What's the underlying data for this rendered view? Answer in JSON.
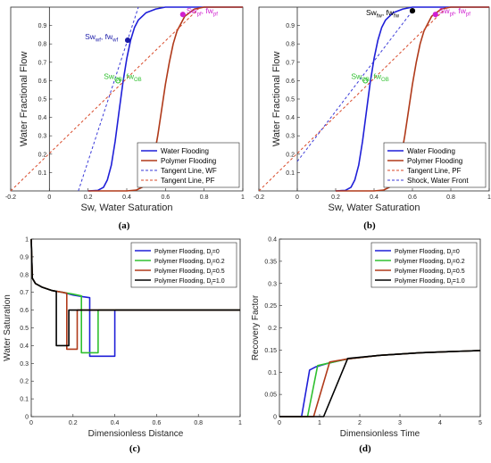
{
  "panels": [
    {
      "caption": "(a)",
      "legend": [
        "Water Flooding",
        "Polymer Flooding",
        "Tangent Line, WF",
        "Tangent Line, PF"
      ],
      "annotations": [
        {
          "text": "Sw",
          "sub": "wf",
          "sep": ", fw",
          "sub2": "wf"
        },
        {
          "text": "Sw",
          "sub": "pf",
          "sep": ", fw",
          "sub2": "pf"
        },
        {
          "text": "Sw",
          "sub": "OB",
          "sep": ", fw",
          "sub2": "OB"
        }
      ]
    },
    {
      "caption": "(b)",
      "legend": [
        "Water Flooding",
        "Polymer Flooding",
        "Tangent Line, PF",
        "Shock, Water Front"
      ],
      "annotations": [
        {
          "text": "Sw",
          "sub": "fw",
          "sep": ", fw",
          "sub2": "fw"
        },
        {
          "text": "Sw",
          "sub": "pf",
          "sep": ", fw",
          "sub2": "pf"
        },
        {
          "text": "Sw",
          "sub": "OB",
          "sep": ", fw",
          "sub2": "OB"
        }
      ]
    },
    {
      "caption": "(c)",
      "legend": [
        {
          "base": "Polymer Flooding, D",
          "sub": "i",
          "tail": "=0"
        },
        {
          "base": "Polymer Flooding, D",
          "sub": "i",
          "tail": "=0.2"
        },
        {
          "base": "Polymer Flooding, D",
          "sub": "i",
          "tail": "=0.5"
        },
        {
          "base": "Polymer Flooding, D",
          "sub": "i",
          "tail": "=1.0"
        }
      ]
    },
    {
      "caption": "(d)",
      "legend": [
        {
          "base": "Polymer Flooding, D",
          "sub": "i",
          "tail": "=0"
        },
        {
          "base": "Polymer Flooding, D",
          "sub": "i",
          "tail": "=0.2"
        },
        {
          "base": "Polymer Flooding, D",
          "sub": "i",
          "tail": "=0.5"
        },
        {
          "base": "Polymer Flooding, D",
          "sub": "i",
          "tail": "=1.0"
        }
      ]
    }
  ],
  "colors": {
    "water": "#1f1fd8",
    "polymer": "#b03a1a",
    "tangent_wf": "#3a3ad8",
    "tangent_pf": "#d84a2a",
    "annot_blue": "#1a1aa8",
    "annot_magenta": "#d020d0",
    "annot_green": "#30c030",
    "annot_black": "#000000",
    "d0": "#1f1fd8",
    "d02": "#30c030",
    "d05": "#b03a1a",
    "d10": "#000000"
  },
  "chart_data": [
    {
      "type": "line",
      "xlabel": "Sw, Water Saturation",
      "ylabel": "Water Fractional Flow",
      "xlim": [
        -0.2,
        1
      ],
      "ylim": [
        0,
        1
      ],
      "xticks": [
        "-0.2",
        "0",
        "0.2",
        "0.4",
        "0.6",
        "0.8",
        "1"
      ],
      "yticks": [
        "0.1",
        "0.2",
        "0.3",
        "0.4",
        "0.5",
        "0.6",
        "0.7",
        "0.8",
        "0.9"
      ],
      "legend_position": "bottom-right",
      "series": [
        {
          "name": "Water Flooding",
          "style": "solid",
          "x": [
            0.2,
            0.25,
            0.28,
            0.3,
            0.32,
            0.34,
            0.36,
            0.38,
            0.4,
            0.42,
            0.44,
            0.46,
            0.5,
            0.55,
            0.6,
            0.7,
            1.0
          ],
          "y": [
            0,
            0.003,
            0.02,
            0.06,
            0.14,
            0.27,
            0.43,
            0.59,
            0.72,
            0.82,
            0.89,
            0.93,
            0.97,
            0.99,
            1.0,
            1.0,
            1.0
          ]
        },
        {
          "name": "Polymer Flooding",
          "style": "solid",
          "x": [
            0.2,
            0.4,
            0.45,
            0.48,
            0.5,
            0.52,
            0.54,
            0.56,
            0.58,
            0.6,
            0.62,
            0.64,
            0.66,
            0.7,
            0.75,
            0.8,
            1.0
          ],
          "y": [
            0,
            0,
            0.005,
            0.02,
            0.05,
            0.1,
            0.18,
            0.3,
            0.44,
            0.58,
            0.7,
            0.8,
            0.87,
            0.95,
            0.99,
            1.0,
            1.0
          ]
        },
        {
          "name": "Tangent Line, WF",
          "style": "dashed",
          "x": [
            0.15,
            0.46
          ],
          "y": [
            0,
            1.0
          ]
        },
        {
          "name": "Tangent Line, PF",
          "style": "dashed",
          "x": [
            -0.2,
            0.78
          ],
          "y": [
            0,
            1.0
          ]
        }
      ],
      "points": [
        {
          "label": "wf",
          "x": 0.405,
          "y": 0.82
        },
        {
          "label": "pf",
          "x": 0.69,
          "y": 0.96
        },
        {
          "label": "OB",
          "x": 0.355,
          "y": 0.6
        }
      ]
    },
    {
      "type": "line",
      "xlabel": "Sw, Water Saturation",
      "ylabel": "Water Fractional Flow",
      "xlim": [
        -0.2,
        1
      ],
      "ylim": [
        0,
        1
      ],
      "xticks": [
        "-0.2",
        "0",
        "0.2",
        "0.4",
        "0.6",
        "0.8",
        "1"
      ],
      "yticks": [
        "0.1",
        "0.2",
        "0.3",
        "0.4",
        "0.5",
        "0.6",
        "0.7",
        "0.8",
        "0.9"
      ],
      "legend_position": "bottom-right",
      "series": [
        {
          "name": "Water Flooding",
          "style": "solid",
          "x": [
            0.2,
            0.25,
            0.28,
            0.3,
            0.32,
            0.34,
            0.36,
            0.38,
            0.4,
            0.42,
            0.44,
            0.46,
            0.5,
            0.55,
            0.6,
            0.7,
            1.0
          ],
          "y": [
            0,
            0.003,
            0.02,
            0.06,
            0.14,
            0.27,
            0.43,
            0.59,
            0.72,
            0.82,
            0.89,
            0.93,
            0.97,
            0.99,
            1.0,
            1.0,
            1.0
          ]
        },
        {
          "name": "Polymer Flooding",
          "style": "solid",
          "x": [
            0.2,
            0.4,
            0.45,
            0.48,
            0.5,
            0.52,
            0.54,
            0.56,
            0.58,
            0.6,
            0.62,
            0.64,
            0.66,
            0.7,
            0.75,
            0.8,
            1.0
          ],
          "y": [
            0,
            0,
            0.005,
            0.02,
            0.05,
            0.1,
            0.18,
            0.3,
            0.44,
            0.58,
            0.7,
            0.8,
            0.87,
            0.95,
            0.99,
            1.0,
            1.0
          ]
        },
        {
          "name": "Tangent Line, PF",
          "style": "dashed",
          "x": [
            -0.2,
            0.78
          ],
          "y": [
            0,
            1.0
          ]
        },
        {
          "name": "Shock, Water Front",
          "style": "dashed",
          "x": [
            0.0,
            0.6
          ],
          "y": [
            0.16,
            0.98
          ]
        }
      ],
      "points": [
        {
          "label": "fw",
          "x": 0.6,
          "y": 0.98
        },
        {
          "label": "pf",
          "x": 0.72,
          "y": 0.96
        },
        {
          "label": "OB",
          "x": 0.355,
          "y": 0.6
        }
      ]
    },
    {
      "type": "line",
      "xlabel": "Dimensionless Distance",
      "ylabel": "Water Saturation",
      "xlim": [
        0,
        1
      ],
      "ylim": [
        0,
        1
      ],
      "xticks": [
        "0",
        "0.2",
        "0.4",
        "0.6",
        "0.8",
        "1"
      ],
      "yticks": [
        "0",
        "0.1",
        "0.2",
        "0.3",
        "0.4",
        "0.5",
        "0.6",
        "0.7",
        "0.8",
        "0.9",
        "1"
      ],
      "legend_position": "top-right",
      "series": [
        {
          "name": "Di=0",
          "x": [
            0,
            0.005,
            0.02,
            0.05,
            0.1,
            0.15,
            0.2,
            0.25,
            0.28,
            0.28,
            0.4,
            0.4,
            1.0
          ],
          "y": [
            1.0,
            0.78,
            0.75,
            0.73,
            0.71,
            0.7,
            0.685,
            0.675,
            0.67,
            0.34,
            0.34,
            0.6,
            0.6
          ]
        },
        {
          "name": "Di=0.2",
          "x": [
            0,
            0.005,
            0.02,
            0.05,
            0.1,
            0.15,
            0.2,
            0.24,
            0.24,
            0.32,
            0.32,
            1.0
          ],
          "y": [
            1.0,
            0.78,
            0.75,
            0.73,
            0.71,
            0.7,
            0.69,
            0.68,
            0.36,
            0.36,
            0.6,
            0.6
          ]
        },
        {
          "name": "Di=0.5",
          "x": [
            0,
            0.005,
            0.02,
            0.05,
            0.1,
            0.15,
            0.17,
            0.17,
            0.22,
            0.22,
            1.0
          ],
          "y": [
            1.0,
            0.78,
            0.75,
            0.73,
            0.71,
            0.7,
            0.695,
            0.38,
            0.38,
            0.6,
            0.6
          ]
        },
        {
          "name": "Di=1.0",
          "x": [
            0,
            0.005,
            0.02,
            0.05,
            0.1,
            0.12,
            0.12,
            0.18,
            0.18,
            1.0
          ],
          "y": [
            1.0,
            0.78,
            0.75,
            0.73,
            0.71,
            0.705,
            0.4,
            0.4,
            0.6,
            0.6
          ]
        }
      ]
    },
    {
      "type": "line",
      "xlabel": "Dimensionless Time",
      "ylabel": "Recovery Factor",
      "xlim": [
        0,
        5
      ],
      "ylim": [
        0,
        0.4
      ],
      "xticks": [
        "0",
        "1",
        "2",
        "3",
        "4",
        "5"
      ],
      "yticks": [
        "0",
        "0.05",
        "0.1",
        "0.15",
        "0.2",
        "0.25",
        "0.3",
        "0.35",
        "0.4"
      ],
      "legend_position": "top-right",
      "series": [
        {
          "name": "Di=0",
          "x": [
            0,
            0.55,
            0.75,
            0.9,
            1.2,
            1.7,
            2.5,
            3.5,
            5.0
          ],
          "y": [
            0,
            0,
            0.105,
            0.112,
            0.12,
            0.13,
            0.138,
            0.144,
            0.149
          ]
        },
        {
          "name": "Di=0.2",
          "x": [
            0,
            0.7,
            0.95,
            1.2,
            1.7,
            2.5,
            3.5,
            5.0
          ],
          "y": [
            0,
            0,
            0.115,
            0.12,
            0.13,
            0.138,
            0.144,
            0.149
          ]
        },
        {
          "name": "Di=0.5",
          "x": [
            0,
            0.85,
            1.25,
            1.7,
            2.5,
            3.5,
            5.0
          ],
          "y": [
            0,
            0,
            0.123,
            0.13,
            0.138,
            0.144,
            0.149
          ]
        },
        {
          "name": "Di=1.0",
          "x": [
            0,
            1.1,
            1.7,
            2.5,
            3.5,
            5.0
          ],
          "y": [
            0,
            0,
            0.131,
            0.138,
            0.144,
            0.149
          ]
        }
      ]
    }
  ]
}
